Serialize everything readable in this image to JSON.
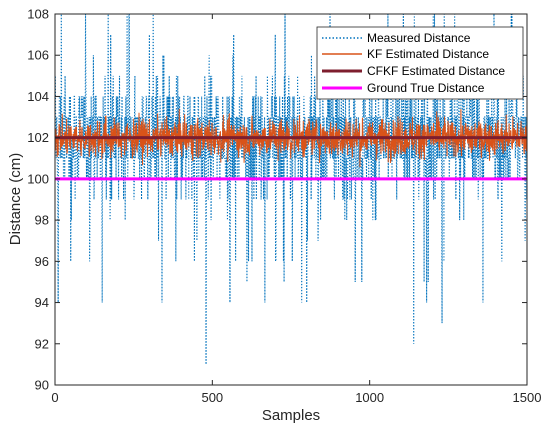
{
  "chart_data": {
    "type": "line",
    "title": "",
    "xlabel": "Samples",
    "ylabel": "Distance (cm)",
    "xlim": [
      0,
      1500
    ],
    "ylim": [
      90,
      108
    ],
    "xticks": [
      0,
      500,
      1000,
      1500
    ],
    "yticks": [
      90,
      92,
      94,
      96,
      98,
      100,
      102,
      104,
      106,
      108
    ],
    "grid": false,
    "legend_position": "top-right",
    "series": [
      {
        "name": "Measured Distance",
        "style": "dotted",
        "color": "#0072BD",
        "description_values": {
          "mean": 102,
          "min": 91,
          "max": 108,
          "noise": "integer readings, roughly 94 to 108"
        },
        "sample_points": [
          [
            0,
            102
          ],
          [
            10,
            94
          ],
          [
            20,
            108
          ],
          [
            50,
            96
          ],
          [
            150,
            94
          ],
          [
            300,
            107
          ],
          [
            340,
            94
          ],
          [
            480,
            91
          ],
          [
            700,
            107
          ],
          [
            800,
            94
          ],
          [
            1000,
            106
          ],
          [
            1140,
            92
          ],
          [
            1230,
            93
          ],
          [
            1300,
            107
          ],
          [
            1420,
            96
          ],
          [
            1500,
            102
          ]
        ]
      },
      {
        "name": "KF Estimated Distance",
        "style": "solid",
        "color": "#D95319",
        "description_values": {
          "mean": 102,
          "band": [
            100.3,
            103.4
          ]
        }
      },
      {
        "name": "CFKF Estimated Distance",
        "style": "solid",
        "color": "#7E1E2E",
        "description_values": {
          "constant": 102
        }
      },
      {
        "name": "Ground True Distance",
        "style": "solid",
        "color": "#FF00FF",
        "description_values": {
          "constant": 100
        }
      }
    ]
  }
}
